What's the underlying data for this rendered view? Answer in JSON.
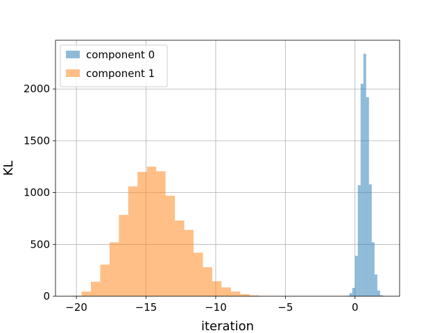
{
  "chart_data": {
    "type": "histogram",
    "title": "",
    "xlabel": "iteration",
    "ylabel": "KL",
    "xlim": [
      -21.5,
      3.2
    ],
    "ylim": [
      0,
      2470
    ],
    "xticks": [
      -20,
      -15,
      -10,
      -5,
      0
    ],
    "yticks": [
      0,
      500,
      1000,
      1500,
      2000
    ],
    "xtick_labels": [
      "−20",
      "−15",
      "−10",
      "−5",
      "0"
    ],
    "ytick_labels": [
      "0",
      "500",
      "1000",
      "1500",
      "2000"
    ],
    "grid": true,
    "legend_position": "upper-left",
    "series": [
      {
        "name": "component 0",
        "color": "#1f77b4",
        "alpha": 0.5,
        "bin_edges": [
          -0.6,
          -0.4,
          -0.2,
          0.0,
          0.2,
          0.4,
          0.6,
          0.8,
          1.0,
          1.2,
          1.4,
          1.6,
          1.8,
          2.0
        ],
        "counts": [
          5,
          30,
          80,
          390,
          1070,
          2050,
          2340,
          1920,
          1080,
          520,
          210,
          55,
          10
        ]
      },
      {
        "name": "component 1",
        "color": "#ff7f0e",
        "alpha": 0.5,
        "bin_edges": [
          -20.3,
          -19.63,
          -18.96,
          -18.29,
          -17.62,
          -16.95,
          -16.28,
          -15.61,
          -14.94,
          -14.27,
          -13.6,
          -12.93,
          -12.26,
          -11.59,
          -10.92,
          -10.25,
          -9.58,
          -8.91,
          -8.24,
          -7.57,
          -6.9,
          -6.23,
          -5.56
        ],
        "counts": [
          5,
          45,
          140,
          305,
          520,
          785,
          1060,
          1200,
          1250,
          1205,
          970,
          730,
          640,
          420,
          280,
          145,
          85,
          45,
          20,
          8,
          3,
          1
        ]
      }
    ]
  }
}
